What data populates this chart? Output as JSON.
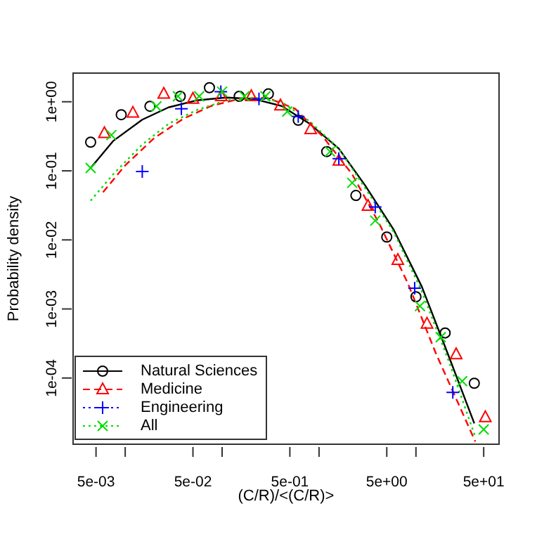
{
  "chart_data": {
    "type": "scatter",
    "xlabel": "(C/R)/<(C/R)>",
    "ylabel": "Probability density",
    "log": "xy",
    "xlim": [
      0.0029,
      72
    ],
    "ylim": [
      1.1e-05,
      2.6
    ],
    "xticks": [
      {
        "value": 0.005,
        "label": "5e-03"
      },
      {
        "value": 0.01,
        "label": null
      },
      {
        "value": 0.05,
        "label": "5e-02"
      },
      {
        "value": 0.1,
        "label": null
      },
      {
        "value": 0.5,
        "label": "5e-01"
      },
      {
        "value": 1,
        "label": null
      },
      {
        "value": 5,
        "label": "5e+00"
      },
      {
        "value": 10,
        "label": null
      },
      {
        "value": 50,
        "label": "5e+01"
      }
    ],
    "yticks": [
      {
        "value": 1,
        "label": "1e+00"
      },
      {
        "value": 0.1,
        "label": "1e-01"
      },
      {
        "value": 0.01,
        "label": "1e-02"
      },
      {
        "value": 0.001,
        "label": "1e-03"
      },
      {
        "value": 0.0001,
        "label": "1e-04"
      }
    ],
    "legend": "bottom left",
    "series": [
      {
        "name": "Natural Sciences",
        "marker": "circle",
        "line_style": "solid",
        "color": "#000000",
        "x": [
          0.0044,
          0.0091,
          0.018,
          0.037,
          0.074,
          0.15,
          0.3,
          0.61,
          1.2,
          2.4,
          5.0,
          10,
          20,
          40
        ],
        "values": [
          0.26,
          0.65,
          0.86,
          1.2,
          1.6,
          1.2,
          1.3,
          0.54,
          0.19,
          0.044,
          0.011,
          0.0015,
          0.00045,
          8.4e-05
        ]
      },
      {
        "name": "Medicine",
        "marker": "triangle",
        "line_style": "dashed",
        "color": "#ff0000",
        "x": [
          0.0061,
          0.012,
          0.025,
          0.05,
          0.098,
          0.2,
          0.4,
          0.82,
          1.6,
          3.2,
          6.5,
          13,
          26,
          52
        ],
        "values": [
          0.35,
          0.69,
          1.3,
          1.1,
          1.2,
          1.2,
          0.88,
          0.4,
          0.14,
          0.031,
          0.0051,
          0.00061,
          0.00022,
          2.7e-05
        ]
      },
      {
        "name": "Engineering",
        "marker": "plus",
        "line_style": "dotted",
        "color": "#0000ff",
        "x": [
          0.015,
          0.038,
          0.097,
          0.24,
          0.61,
          1.6,
          3.8,
          9.7,
          24
        ],
        "values": [
          0.098,
          0.79,
          1.4,
          1.1,
          0.61,
          0.15,
          0.03,
          0.002,
          6.2e-05
        ]
      },
      {
        "name": "All",
        "marker": "cross",
        "line_style": "dotted",
        "color": "#00dd00",
        "x": [
          0.0044,
          0.0072,
          0.021,
          0.035,
          0.058,
          0.1,
          0.17,
          0.28,
          0.47,
          1.3,
          2.2,
          3.8,
          11,
          18,
          30,
          50
        ],
        "values": [
          0.11,
          0.33,
          0.86,
          1.2,
          1.2,
          1.4,
          1.2,
          1.2,
          0.72,
          0.19,
          0.067,
          0.019,
          0.0011,
          0.00039,
          9e-05,
          1.8e-05
        ]
      },
      {
        "type": "line",
        "marker": "none",
        "line_style": "solid",
        "color": "#000000",
        "x": [
          0.0044,
          0.0075,
          0.015,
          0.028,
          0.055,
          0.11,
          0.21,
          0.41,
          0.8,
          1.6,
          3.0,
          5.9,
          11.5,
          22,
          40
        ],
        "values": [
          0.11,
          0.27,
          0.55,
          0.83,
          1.05,
          1.15,
          1.1,
          0.87,
          0.48,
          0.21,
          0.061,
          0.014,
          0.0021,
          0.0002,
          2.2e-05
        ]
      },
      {
        "type": "line",
        "marker": "none",
        "line_style": "dashed",
        "color": "#ff0000",
        "x": [
          0.0059,
          0.01,
          0.02,
          0.04,
          0.077,
          0.15,
          0.29,
          0.57,
          1.1,
          2.2,
          4.2,
          8.2,
          16,
          41
        ],
        "values": [
          0.049,
          0.12,
          0.3,
          0.57,
          0.87,
          1.1,
          1.15,
          0.79,
          0.31,
          0.089,
          0.017,
          0.0024,
          0.00023,
          1.2e-05
        ]
      },
      {
        "type": "line",
        "marker": "none",
        "line_style": "dotted",
        "color": "#00dd00",
        "x": [
          0.0044,
          0.0075,
          0.015,
          0.028,
          0.055,
          0.11,
          0.21,
          0.41,
          0.8,
          1.6,
          3.0,
          5.9,
          11.5,
          22,
          41
        ],
        "values": [
          0.037,
          0.089,
          0.24,
          0.48,
          0.76,
          1.05,
          1.15,
          1.0,
          0.52,
          0.21,
          0.056,
          0.013,
          0.0018,
          0.00017,
          1.4e-05
        ]
      }
    ]
  }
}
